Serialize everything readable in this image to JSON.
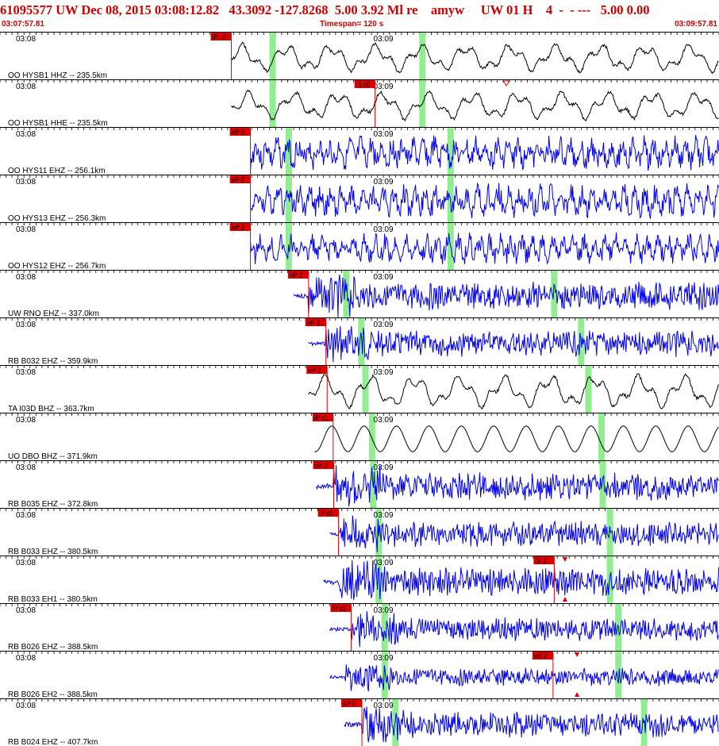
{
  "header": {
    "title": "61095577 UW Dec 08, 2015 03:08:12.82   43.3092 -127.8268  5.00 3.92 Ml re    amyw     UW 01 H    4  -  - ---   5.00 0.00",
    "start_time": "03:07:57.81",
    "timespan": "Timespan= 120 s",
    "end_time": "03:09:57.81"
  },
  "colors": {
    "trace_black": "#000000",
    "trace_blue": "#0000ee",
    "pick_red": "#dd0000",
    "window_green": "#90ee90"
  },
  "time_axis": {
    "start_label": "03:07:57.81",
    "span_seconds": 120,
    "minute_labels": [
      "03:08",
      "03:09"
    ]
  },
  "channels": [
    {
      "label": "OO HYSB1 HHZ -- 235.5km",
      "pick": "iP c0",
      "pick_s": 38.6,
      "data_start_s": 38.6,
      "s_pick": null,
      "green_s": [
        45.5,
        70.5
      ],
      "color": "black",
      "style": "long",
      "amp": 17,
      "seed": 1
    },
    {
      "label": "OO HYSB1 HHE -- 235.5km",
      "pick": "iS c0",
      "pick_s": 62.6,
      "data_start_s": 38.6,
      "s_pick": null,
      "green_s": [
        45.5,
        70.5
      ],
      "color": "black",
      "style": "long",
      "amp": 17,
      "seed": 2,
      "marker": "open"
    },
    {
      "label": "OO HYS11 EHZ -- 256.1km",
      "pick": "eP 2",
      "pick_s": 41.8,
      "data_start_s": 41.8,
      "s_pick": null,
      "green_s": [
        48.2,
        75.2
      ],
      "color": "blue",
      "style": "mid",
      "amp": 20,
      "seed": 3
    },
    {
      "label": "OO HYS13 EHZ -- 256.3km",
      "pick": "eP 2",
      "pick_s": 41.8,
      "data_start_s": 41.8,
      "s_pick": null,
      "green_s": [
        48.2,
        75.2
      ],
      "color": "blue",
      "style": "mid",
      "amp": 20,
      "seed": 4
    },
    {
      "label": "OO HYS12 EHZ -- 256.7km",
      "pick": "eP 2",
      "pick_s": 41.8,
      "data_start_s": 41.8,
      "s_pick": null,
      "green_s": [
        48.2,
        75.2
      ],
      "color": "blue",
      "style": "mid",
      "amp": 18,
      "seed": 5
    },
    {
      "label": "UW RNO EHZ -- 337.0km",
      "pick": "eP 2",
      "pick_s": 51.5,
      "data_start_s": 49.0,
      "s_pick": null,
      "green_s": [
        57.8,
        92.5
      ],
      "color": "blue",
      "style": "burst",
      "amp": 22,
      "seed": 6
    },
    {
      "label": "RB B032 EHZ -- 359.9km",
      "pick": "eP 2",
      "pick_s": 54.4,
      "data_start_s": 51.5,
      "s_pick": null,
      "green_s": [
        60.3,
        97.0
      ],
      "color": "blue",
      "style": "burst",
      "amp": 20,
      "seed": 7
    },
    {
      "label": "TA I03D BHZ -- 363.7km",
      "pick": "eP 2",
      "pick_s": 54.6,
      "data_start_s": 51.5,
      "s_pick": null,
      "green_s": [
        61.0,
        98.2
      ],
      "color": "black",
      "style": "long",
      "amp": 20,
      "seed": 8
    },
    {
      "label": "UO DBO BHZ -- 371.9km",
      "pick": "iP c1",
      "pick_s": 55.6,
      "data_start_s": 52.5,
      "s_pick": null,
      "green_s": [
        62.1,
        100.4
      ],
      "color": "black",
      "style": "smooth",
      "amp": 18,
      "seed": 9
    },
    {
      "label": "RB B035 EHZ -- 372.8km",
      "pick": "eP 2",
      "pick_s": 55.7,
      "data_start_s": 52.8,
      "s_pick": null,
      "green_s": [
        62.3,
        100.6
      ],
      "color": "blue",
      "style": "burst",
      "amp": 22,
      "seed": 10
    },
    {
      "label": "RB B033 EHZ -- 380.5km",
      "pick": "iP c0",
      "pick_s": 56.5,
      "data_start_s": 55.0,
      "s_pick": null,
      "green_s": [
        63.2,
        101.8
      ],
      "color": "blue",
      "style": "burst",
      "amp": 20,
      "seed": 11
    },
    {
      "label": "RB B033 EH1 -- 380.5km",
      "pick": "",
      "pick_s": null,
      "data_start_s": 54.0,
      "s_pick": {
        "label": "iS 1",
        "s": 92.5,
        "arrow_s": 94.3
      },
      "green_s": [
        63.2,
        101.8
      ],
      "color": "blue",
      "style": "burst",
      "amp": 22,
      "seed": 12
    },
    {
      "label": "RB B026 EHZ -- 388.5km",
      "pick": "iP c1",
      "pick_s": 58.6,
      "data_start_s": 55.0,
      "s_pick": null,
      "green_s": [
        64.2,
        103.2
      ],
      "color": "blue",
      "style": "burst",
      "amp": 18,
      "seed": 13
    },
    {
      "label": "RB B026 EH2 -- 388.5km",
      "pick": "",
      "pick_s": null,
      "data_start_s": 55.0,
      "s_pick": {
        "label": "eS 2",
        "s": 92.3,
        "arrow_s": 96.3
      },
      "green_s": [
        64.2,
        103.2
      ],
      "color": "blue",
      "style": "burst",
      "amp": 14,
      "seed": 14
    },
    {
      "label": "RB B024 EHZ -- 407.7km",
      "pick": "eP 0",
      "pick_s": 60.4,
      "data_start_s": 57.5,
      "s_pick": null,
      "green_s": [
        66.0,
        107.5
      ],
      "color": "blue",
      "style": "burst",
      "amp": 20,
      "seed": 15
    }
  ]
}
